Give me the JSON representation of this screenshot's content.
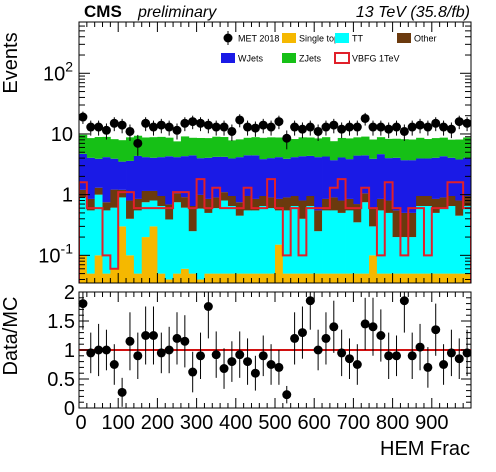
{
  "header": {
    "cms": "CMS",
    "preliminary": "preliminary",
    "energy": "13 TeV (35.8/fb)"
  },
  "colors": {
    "data": "#000000",
    "single_top": "#f5b800",
    "tt": "#00ffff",
    "other": "#6b3a0e",
    "wjets": "#1a1ae6",
    "zjets": "#16c016",
    "signal": "#e0202a",
    "ratio_line": "#d01010"
  },
  "chart_data": [
    {
      "type": "bar",
      "stacked": true,
      "log_y": true,
      "ylabel": "Events",
      "ylim": [
        0.035,
        700
      ],
      "yticks": [
        {
          "value": 0.1,
          "label": "10^-1"
        },
        {
          "value": 1,
          "label": "1"
        },
        {
          "value": 10,
          "label": "10"
        },
        {
          "value": 100,
          "label": "10^2"
        }
      ],
      "xlim": [
        0,
        1000
      ],
      "bin_width": 20,
      "legend_position": "top-right",
      "legend": [
        {
          "name": "MET 2018",
          "kind": "data"
        },
        {
          "name": "Single top",
          "kind": "fill",
          "color_key": "single_top"
        },
        {
          "name": "TT",
          "kind": "fill",
          "color_key": "tt"
        },
        {
          "name": "Other",
          "kind": "fill",
          "color_key": "other"
        },
        {
          "name": "WJets",
          "kind": "fill",
          "color_key": "wjets"
        },
        {
          "name": "ZJets",
          "kind": "fill",
          "color_key": "zjets"
        },
        {
          "name": "VBFG 1TeV",
          "kind": "outline",
          "color_key": "signal"
        }
      ],
      "series": [
        {
          "name": "Single top",
          "values": [
            0.1,
            0.05,
            0.1,
            0.05,
            0.06,
            0.3,
            0.1,
            0.05,
            0.2,
            0.3,
            0.05,
            0.04,
            0.05,
            0.06,
            0.05,
            0.04,
            0.05,
            0.05,
            0.05,
            0.05,
            0.05,
            0.05,
            0.05,
            0.05,
            0.05,
            0.15,
            0.05,
            0.05,
            0.05,
            0.05,
            0.05,
            0.05,
            0.05,
            0.05,
            0.05,
            0.05,
            0.05,
            0.1,
            0.05,
            0.05,
            0.05,
            0.05,
            0.05,
            0.05,
            0.05,
            0.05,
            0.05,
            0.05,
            0.05,
            0.05
          ]
        },
        {
          "name": "TT",
          "values": [
            0.8,
            0.5,
            0.9,
            0.5,
            0.55,
            0.6,
            0.3,
            0.5,
            0.55,
            0.5,
            0.6,
            0.35,
            0.7,
            0.55,
            0.2,
            0.55,
            0.45,
            0.55,
            0.75,
            0.6,
            0.4,
            0.5,
            0.5,
            0.6,
            0.55,
            0.4,
            0.5,
            0.6,
            0.35,
            0.6,
            0.2,
            0.5,
            0.5,
            0.45,
            0.5,
            0.3,
            0.7,
            0.2,
            0.5,
            0.45,
            0.15,
            0.15,
            0.15,
            0.6,
            0.6,
            0.45,
            0.55,
            0.6,
            0.4,
            0.6
          ]
        },
        {
          "name": "Other",
          "values": [
            0.3,
            0.3,
            0.3,
            0.2,
            0.6,
            0.3,
            0.4,
            0.3,
            0.4,
            0.35,
            0.3,
            0.3,
            0.3,
            0.3,
            0.4,
            0.4,
            0.35,
            0.3,
            0.3,
            0.3,
            0.3,
            0.4,
            0.3,
            0.3,
            0.3,
            0.3,
            0.35,
            0.3,
            0.4,
            0.3,
            0.3,
            0.3,
            0.35,
            0.3,
            0.3,
            0.35,
            0.3,
            0.3,
            0.3,
            0.3,
            0.35,
            0.3,
            0.3,
            0.3,
            0.3,
            0.35,
            0.3,
            0.3,
            0.35,
            0.3
          ]
        },
        {
          "name": "WJets",
          "values": [
            3.5,
            3.2,
            2.6,
            3.4,
            2.7,
            2.3,
            2.8,
            3.5,
            3.0,
            2.9,
            3.2,
            3.6,
            3.1,
            3.4,
            3.8,
            3.0,
            3.2,
            3.3,
            3.1,
            3.0,
            3.4,
            3.5,
            3.6,
            2.9,
            3.1,
            3.3,
            3.0,
            3.2,
            3.5,
            3.4,
            3.6,
            3.4,
            2.8,
            3.3,
            3.0,
            3.7,
            3.4,
            3.3,
            3.8,
            3.2,
            3.5,
            3.2,
            3.2,
            3.0,
            3.0,
            3.2,
            3.4,
            3.1,
            3.0,
            3.1
          ]
        },
        {
          "name": "ZJets",
          "values": [
            5.0,
            4.5,
            5.0,
            4.8,
            4.3,
            4.4,
            5.2,
            5.0,
            4.6,
            4.8,
            4.8,
            4.4,
            3.4,
            4.8,
            4.2,
            4.6,
            4.5,
            4.8,
            4.7,
            3.9,
            4.0,
            4.2,
            4.4,
            4.8,
            4.8,
            4.6,
            4.8,
            4.1,
            4.5,
            4.4,
            4.3,
            4.6,
            3.9,
            4.5,
            4.6,
            4.4,
            4.6,
            4.2,
            4.2,
            4.3,
            4.3,
            4.5,
            4.4,
            4.7,
            4.3,
            4.5,
            4.4,
            4.0,
            4.3,
            4.7
          ]
        },
        {
          "name": "VBFG 1TeV",
          "values": [
            1.6,
            0.6,
            0.6,
            0.1,
            0.06,
            1.1,
            1.1,
            0.6,
            0.6,
            0.6,
            0.6,
            0.6,
            1.1,
            1.1,
            0.6,
            1.8,
            0.6,
            1.3,
            0.6,
            0.6,
            0.6,
            1.3,
            0.6,
            0.6,
            1.8,
            0.6,
            0.1,
            0.6,
            0.1,
            0.6,
            0.6,
            0.6,
            1.3,
            1.8,
            0.6,
            0.6,
            1.3,
            0.6,
            0.1,
            1.6,
            0.6,
            0.1,
            0.6,
            0.6,
            0.1,
            0.6,
            0.6,
            1.6,
            1.6,
            0.6
          ]
        },
        {
          "name": "MET 2018",
          "values": [
            19,
            13,
            13,
            11.5,
            15,
            14,
            11,
            7,
            15,
            13,
            14,
            13,
            11.5,
            15,
            16,
            15,
            14,
            13,
            13,
            11,
            17,
            13,
            12.5,
            14,
            13,
            16,
            8.5,
            13,
            12,
            13,
            11,
            13,
            14,
            12,
            13,
            13,
            18,
            13,
            13,
            12,
            13,
            11,
            13,
            14,
            13,
            15,
            13,
            12,
            16,
            15
          ]
        }
      ]
    },
    {
      "type": "scatter",
      "ylabel": "Data/MC",
      "xlabel": "HEM Frac",
      "ylim": [
        0,
        2
      ],
      "yticks": [
        0,
        0.5,
        1,
        1.5,
        2
      ],
      "xlim": [
        0,
        1000
      ],
      "xticks": [
        0,
        100,
        200,
        300,
        400,
        500,
        600,
        700,
        800,
        900
      ],
      "reference": 1,
      "x": [
        10,
        30,
        50,
        70,
        90,
        110,
        130,
        150,
        170,
        190,
        210,
        230,
        250,
        270,
        290,
        310,
        330,
        350,
        370,
        390,
        410,
        430,
        450,
        470,
        490,
        510,
        530,
        550,
        570,
        590,
        610,
        630,
        650,
        670,
        690,
        710,
        730,
        750,
        770,
        790,
        810,
        830,
        850,
        870,
        890,
        910,
        930,
        950,
        970,
        990
      ],
      "values": [
        1.8,
        0.95,
        1.0,
        1.0,
        0.75,
        0.27,
        1.15,
        0.9,
        1.25,
        1.25,
        0.95,
        1.0,
        1.2,
        1.15,
        0.62,
        0.9,
        1.75,
        0.92,
        0.68,
        0.8,
        0.92,
        0.8,
        0.6,
        0.9,
        0.75,
        0.7,
        0.23,
        1.2,
        1.3,
        1.85,
        1.0,
        1.2,
        1.4,
        0.95,
        0.85,
        0.75,
        1.45,
        1.4,
        1.25,
        0.9,
        0.9,
        1.85,
        0.9,
        1.05,
        0.7,
        1.35,
        0.75,
        0.95,
        0.85,
        0.95
      ],
      "errors": [
        0.45,
        0.35,
        0.45,
        0.35,
        0.35,
        0.25,
        0.5,
        0.4,
        0.5,
        0.5,
        0.35,
        0.4,
        0.45,
        0.45,
        0.35,
        0.4,
        0.55,
        0.4,
        0.35,
        0.35,
        0.4,
        0.4,
        0.3,
        0.35,
        0.35,
        0.3,
        0.15,
        0.45,
        0.45,
        0.5,
        0.35,
        0.45,
        0.45,
        0.4,
        0.35,
        0.35,
        0.45,
        0.5,
        0.45,
        0.4,
        0.35,
        0.55,
        0.4,
        0.4,
        0.35,
        0.45,
        0.35,
        0.4,
        0.35,
        0.4
      ]
    }
  ]
}
